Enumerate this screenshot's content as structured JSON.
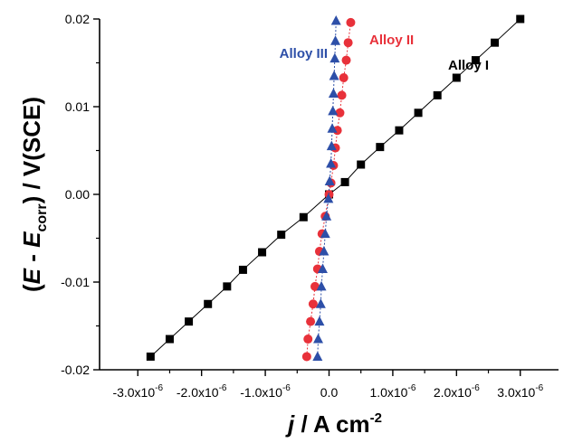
{
  "chart_data": {
    "type": "scatter",
    "xlabel": {
      "main": "j",
      "rest": " / A cm",
      "sup": "-2"
    },
    "ylabel": {
      "open": "(",
      "e": "E",
      "dash": " - ",
      "e2": "E",
      "sub": "corr",
      "close": ") / V(SCE)"
    },
    "xlim": [
      -3.6e-06,
      3.6e-06
    ],
    "ylim": [
      -0.02,
      0.02
    ],
    "xticks": [
      {
        "value": -3e-06,
        "mant": "-3.0x10",
        "exp": "-6"
      },
      {
        "value": -2e-06,
        "mant": "-2.0x10",
        "exp": "-6"
      },
      {
        "value": -1e-06,
        "mant": "-1.0x10",
        "exp": "-6"
      },
      {
        "value": 0.0,
        "mant": "0.0",
        "exp": ""
      },
      {
        "value": 1e-06,
        "mant": "1.0x10",
        "exp": "-6"
      },
      {
        "value": 2e-06,
        "mant": "2.0x10",
        "exp": "-6"
      },
      {
        "value": 3e-06,
        "mant": "3.0x10",
        "exp": "-6"
      }
    ],
    "yticks": [
      {
        "value": 0.02,
        "label": "0.02"
      },
      {
        "value": 0.01,
        "label": "0.01"
      },
      {
        "value": 0.0,
        "label": "0.00"
      },
      {
        "value": -0.01,
        "label": "-0.01"
      },
      {
        "value": -0.02,
        "label": "-0.02"
      }
    ],
    "series": [
      {
        "name": "Alloy I",
        "color": "#000000",
        "marker": "square",
        "points": [
          [
            -2.8e-06,
            -0.0185
          ],
          [
            -2.5e-06,
            -0.0165
          ],
          [
            -2.2e-06,
            -0.0145
          ],
          [
            -1.9e-06,
            -0.0125
          ],
          [
            -1.6e-06,
            -0.0105
          ],
          [
            -1.35e-06,
            -0.0086
          ],
          [
            -1.05e-06,
            -0.0066
          ],
          [
            -7.5e-07,
            -0.0046
          ],
          [
            -4e-07,
            -0.0026
          ],
          [
            0.0,
            0.0
          ],
          [
            2.5e-07,
            0.0014
          ],
          [
            5e-07,
            0.0034
          ],
          [
            8e-07,
            0.0054
          ],
          [
            1.1e-06,
            0.0073
          ],
          [
            1.4e-06,
            0.0093
          ],
          [
            1.7e-06,
            0.0113
          ],
          [
            2e-06,
            0.0133
          ],
          [
            2.3e-06,
            0.0153
          ],
          [
            2.6e-06,
            0.0173
          ],
          [
            3e-06,
            0.02
          ]
        ]
      },
      {
        "name": "Alloy II",
        "color": "#e8313a",
        "marker": "circle",
        "points": [
          [
            -3.5e-07,
            -0.0185
          ],
          [
            -3.3e-07,
            -0.0165
          ],
          [
            -2.9e-07,
            -0.0145
          ],
          [
            -2.5e-07,
            -0.0125
          ],
          [
            -2.2e-07,
            -0.0105
          ],
          [
            -1.8e-07,
            -0.0085
          ],
          [
            -1.5e-07,
            -0.0065
          ],
          [
            -1.1e-07,
            -0.0045
          ],
          [
            -6e-08,
            -0.0025
          ],
          [
            0.0,
            0.0
          ],
          [
            3e-08,
            0.0013
          ],
          [
            7e-08,
            0.0033
          ],
          [
            1e-07,
            0.0053
          ],
          [
            1.3e-07,
            0.0073
          ],
          [
            1.7e-07,
            0.0093
          ],
          [
            2e-07,
            0.0113
          ],
          [
            2.3e-07,
            0.0133
          ],
          [
            2.7e-07,
            0.0153
          ],
          [
            3e-07,
            0.0173
          ],
          [
            3.4e-07,
            0.0196
          ]
        ]
      },
      {
        "name": "Alloy III",
        "color": "#2d4fa8",
        "marker": "triangle",
        "points": [
          [
            -1.8e-07,
            -0.0185
          ],
          [
            -1.7e-07,
            -0.0165
          ],
          [
            -1.5e-07,
            -0.0145
          ],
          [
            -1.3e-07,
            -0.0125
          ],
          [
            -1.2e-07,
            -0.0105
          ],
          [
            -1e-07,
            -0.0085
          ],
          [
            -8e-08,
            -0.0065
          ],
          [
            -6e-08,
            -0.0045
          ],
          [
            -4e-08,
            -0.0025
          ],
          [
            -1e-08,
            -0.0005
          ],
          [
            1e-08,
            0.0015
          ],
          [
            3e-08,
            0.0035
          ],
          [
            4e-08,
            0.0055
          ],
          [
            5e-08,
            0.0075
          ],
          [
            6e-08,
            0.0095
          ],
          [
            7e-08,
            0.0115
          ],
          [
            8e-08,
            0.0135
          ],
          [
            9e-08,
            0.0155
          ],
          [
            1e-07,
            0.0175
          ],
          [
            1.1e-07,
            0.0198
          ]
        ]
      }
    ]
  }
}
